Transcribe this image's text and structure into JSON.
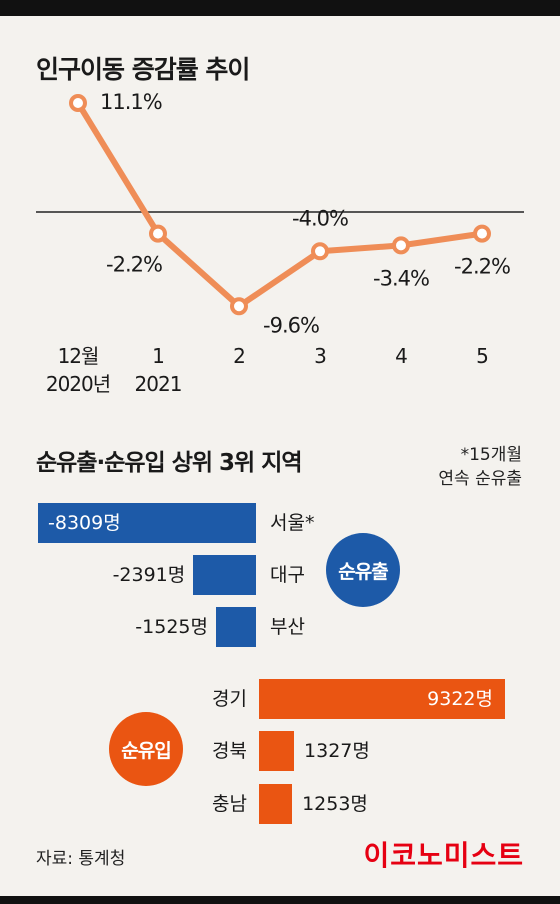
{
  "chart_data": [
    {
      "type": "line",
      "title": "인구이동 증감률 추이",
      "categories": [
        "12월\n2020년",
        "1\n2021",
        "2",
        "3",
        "4",
        "5"
      ],
      "values": [
        11.1,
        -2.2,
        -9.6,
        -4.0,
        -3.4,
        -2.2
      ],
      "value_labels": [
        "11.1%",
        "-2.2%",
        "-9.6%",
        "-4.0%",
        "-3.4%",
        "-2.2%"
      ],
      "ylim": [
        -12,
        13
      ],
      "baseline": 0,
      "color": "#ef8d57"
    },
    {
      "type": "bar",
      "title": "순유출·순유입 상위 3위 지역",
      "note": [
        "*15개월",
        "연속 순유출"
      ],
      "groups": [
        {
          "name": "순유출",
          "color": "#1d5aa8",
          "categories": [
            "서울*",
            "대구",
            "부산"
          ],
          "values": [
            -8309,
            -2391,
            -1525
          ],
          "value_labels": [
            "-8309명",
            "-2391명",
            "-1525명"
          ]
        },
        {
          "name": "순유입",
          "color": "#ea5512",
          "categories": [
            "경기",
            "경북",
            "충남"
          ],
          "values": [
            9322,
            1327,
            1253
          ],
          "value_labels": [
            "9322명",
            "1327명",
            "1253명"
          ]
        }
      ]
    }
  ],
  "footer": {
    "source": "자료: 통계청",
    "brand": "이코노미스트"
  }
}
